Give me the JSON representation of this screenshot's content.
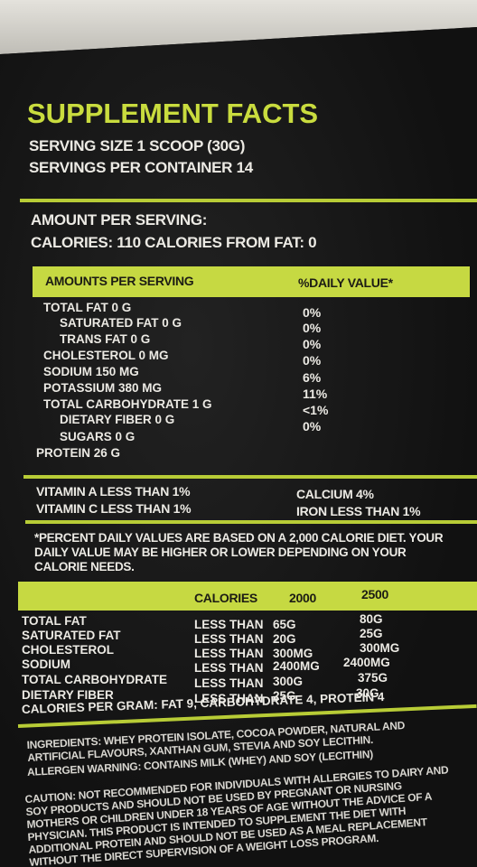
{
  "header": {
    "title": "SUPPLEMENT FACTS",
    "serving_size": "SERVING SIZE 1 SCOOP (30G)",
    "servings_per_container": "SERVINGS PER CONTAINER 14"
  },
  "amount": {
    "heading": "AMOUNT PER SERVING:",
    "calories": "CALORIES: 110 CALORIES FROM FAT: 0"
  },
  "nutrients": {
    "header": [
      "AMOUNTS PER SERVING",
      "%DAILY VALUE*"
    ],
    "rows": [
      {
        "label": "TOTAL FAT 0 G",
        "dv": "0%"
      },
      {
        "label": "SATURATED FAT 0 G",
        "dv": "0%"
      },
      {
        "label": "TRANS FAT 0 G",
        "dv": "0%"
      },
      {
        "label": "CHOLESTEROL 0 MG",
        "dv": "0%"
      },
      {
        "label": "SODIUM 150 MG",
        "dv": "6%"
      },
      {
        "label": "POTASSIUM 380 MG",
        "dv": "11%"
      },
      {
        "label": "TOTAL CARBOHYDRATE 1 G",
        "dv": "<1%"
      },
      {
        "label": "DIETARY FIBER 0 G",
        "dv": "0%"
      },
      {
        "label": "SUGARS 0 G"
      },
      {
        "label": "PROTEIN 26 G"
      }
    ]
  },
  "vitamins": [
    [
      "VITAMIN A LESS THAN 1%",
      "CALCIUM 4%"
    ],
    [
      "VITAMIN C LESS THAN 1%",
      "IRON LESS THAN 1%"
    ]
  ],
  "footnote": "*PERCENT DAILY VALUES ARE BASED ON A 2,000 CALORIE DIET. YOUR DAILY VALUE MAY BE HIGHER OR LOWER DEPENDING ON YOUR CALORIE NEEDS.",
  "reference": {
    "header": [
      "CALORIES",
      "2000",
      "2500"
    ],
    "rows": [
      [
        "TOTAL FAT",
        "LESS THAN",
        "65G",
        "80G"
      ],
      [
        "SATURATED FAT",
        "LESS THAN",
        "20G",
        "25G"
      ],
      [
        "CHOLESTEROL",
        "LESS THAN",
        "300MG",
        "300MG"
      ],
      [
        "SODIUM",
        "LESS THAN",
        "2400MG",
        "2400MG"
      ],
      [
        "TOTAL CARBOHYDRATE",
        "LESS THAN",
        "300G",
        "375G"
      ],
      [
        "DIETARY FIBER",
        "LESS THAN",
        "25G",
        "30G"
      ]
    ],
    "calories_per_gram": "CALORIES PER GRAM: FAT 9, CARBOHYDRATE 4, PROTEIN 4"
  },
  "ingredients": "INGREDIENTS: WHEY PROTEIN ISOLATE, COCOA POWDER, NATURAL AND ARTIFICIAL FLAVOURS, XANTHAN GUM, STEVIA AND SOY LECITHIN.",
  "allergen": "ALLERGEN WARNING: CONTAINS MILK (WHEY) AND SOY (LECITHIN)",
  "caution": "CAUTION: NOT RECOMMENDED FOR INDIVIDUALS WITH ALLERGIES TO DAIRY AND SOY PRODUCTS AND SHOULD NOT BE USED BY PREGNANT OR NURSING MOTHERS OR CHILDREN UNDER 18 YEARS OF AGE WITHOUT THE ADVICE OF A PHYSICIAN. THIS PRODUCT IS INTENDED TO SUPPLEMENT THE DIET WITH ADDITIONAL PROTEIN AND SHOULD NOT BE USED AS A MEAL REPLACEMENT WITHOUT THE DIRECT SUPERVISION OF A WEIGHT LOSS PROGRAM. MANUFACTURED AND PACKAGED IN A FACILITY THAT PROCESSES MILK, SOY, WHEAT, EGG, PEANUTS AND MAY CONTAIN"
}
